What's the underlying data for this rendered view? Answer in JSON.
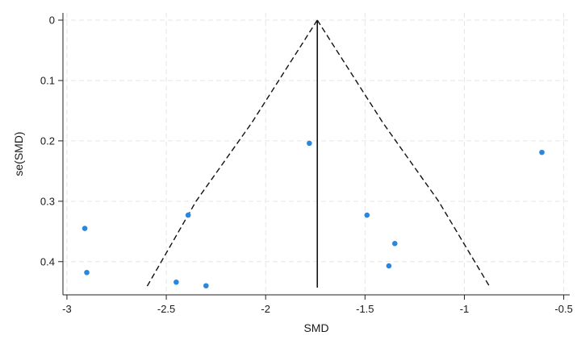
{
  "chart_data": {
    "type": "scatter",
    "title": "",
    "xlabel": "SMD",
    "ylabel": "se(SMD)",
    "xlim": [
      -3.02,
      -0.47
    ],
    "ylim": [
      0.455,
      -0.012
    ],
    "y_reversed": true,
    "x_ticks": [
      {
        "value": -3,
        "label": "-3"
      },
      {
        "value": -2.5,
        "label": "-2.5"
      },
      {
        "value": -2,
        "label": "-2"
      },
      {
        "value": -1.5,
        "label": "-1.5"
      },
      {
        "value": -1,
        "label": "-1"
      },
      {
        "value": -0.5,
        "label": "-0.5"
      }
    ],
    "y_ticks": [
      {
        "value": 0,
        "label": "0"
      },
      {
        "value": 0.1,
        "label": "0.1"
      },
      {
        "value": 0.2,
        "label": "0.2"
      },
      {
        "value": 0.3,
        "label": "0.3"
      },
      {
        "value": 0.4,
        "label": "0.4"
      }
    ],
    "grid": true,
    "pooled_estimate": -1.74,
    "pooled_line_se_range": [
      0,
      0.443
    ],
    "funnel_limits": {
      "left": [
        {
          "x": -1.74,
          "y": 0
        },
        {
          "x": -2.07,
          "y": 0.17
        },
        {
          "x": -2.35,
          "y": 0.3
        },
        {
          "x": -2.6,
          "y": 0.443
        }
      ],
      "right": [
        {
          "x": -1.74,
          "y": 0
        },
        {
          "x": -1.41,
          "y": 0.17
        },
        {
          "x": -1.13,
          "y": 0.3
        },
        {
          "x": -0.87,
          "y": 0.443
        }
      ]
    },
    "points_color": "#2a87e0",
    "points": [
      {
        "x": -2.91,
        "y": 0.345
      },
      {
        "x": -2.9,
        "y": 0.418
      },
      {
        "x": -2.39,
        "y": 0.323
      },
      {
        "x": -2.45,
        "y": 0.434
      },
      {
        "x": -2.3,
        "y": 0.44
      },
      {
        "x": -1.78,
        "y": 0.204
      },
      {
        "x": -1.49,
        "y": 0.323
      },
      {
        "x": -1.35,
        "y": 0.37
      },
      {
        "x": -1.38,
        "y": 0.407
      },
      {
        "x": -0.61,
        "y": 0.219
      }
    ]
  }
}
